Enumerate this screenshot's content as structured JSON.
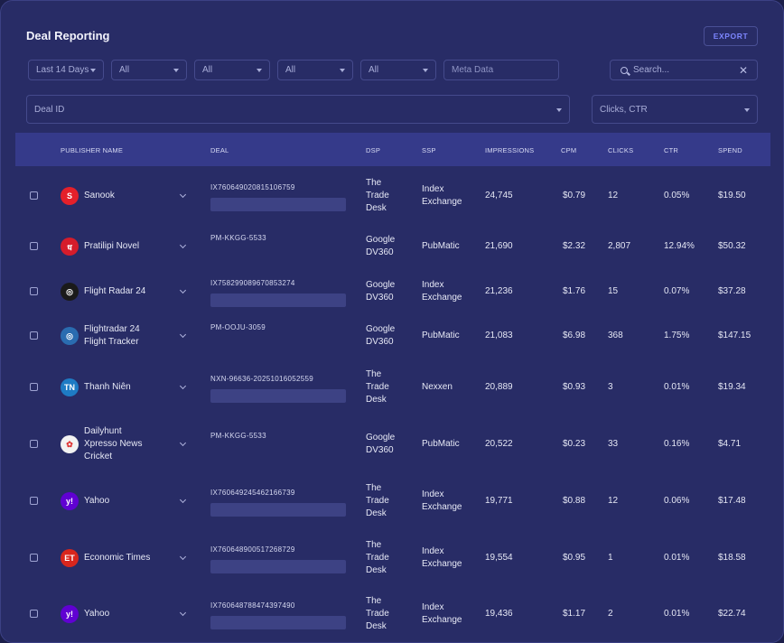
{
  "header": {
    "title": "Deal Reporting",
    "export_label": "EXPORT"
  },
  "filters": {
    "date_range": "Last 14 Days",
    "all_1": "All",
    "all_2": "All",
    "all_3": "All",
    "all_4": "All",
    "meta_placeholder": "Meta Data",
    "search_placeholder": "Search...",
    "deal_id_placeholder": "Deal ID",
    "metrics_value": "Clicks, CTR"
  },
  "table": {
    "columns": [
      "PUBLISHER NAME",
      "DEAL",
      "DSP",
      "SSP",
      "IMPRESSIONS",
      "CPM",
      "CLICKS",
      "CTR",
      "SPEND"
    ],
    "rows": [
      {
        "publisher": [
          "Sanook"
        ],
        "logo": "S",
        "logo_color": "#e4202a",
        "deal": "IX760649020815106759",
        "dsp": [
          "The",
          "Trade",
          "Desk"
        ],
        "ssp": [
          "Index",
          "Exchange"
        ],
        "impressions": "24,745",
        "cpm": "$0.79",
        "clicks": "12",
        "ctr": "0.05%",
        "spend": "$19.50"
      },
      {
        "publisher": [
          "Pratilipi Novel"
        ],
        "logo": "ध",
        "logo_color": "#d51c2b",
        "deal": "PM-KKGG-5533",
        "dsp": [
          "Google",
          "DV360"
        ],
        "ssp": [
          "PubMatic"
        ],
        "impressions": "21,690",
        "cpm": "$2.32",
        "clicks": "2,807",
        "ctr": "12.94%",
        "spend": "$50.32"
      },
      {
        "publisher": [
          "Flight Radar 24"
        ],
        "logo": "◎",
        "logo_color": "#1a1a1a",
        "deal": "IX758299089670853274",
        "dsp": [
          "Google",
          "DV360"
        ],
        "ssp": [
          "Index",
          "Exchange"
        ],
        "impressions": "21,236",
        "cpm": "$1.76",
        "clicks": "15",
        "ctr": "0.07%",
        "spend": "$37.28"
      },
      {
        "publisher": [
          "Flightradar 24",
          "Flight Tracker"
        ],
        "logo": "◎",
        "logo_color": "#2a6cb0",
        "deal": "PM-OOJU-3059",
        "dsp": [
          "Google",
          "DV360"
        ],
        "ssp": [
          "PubMatic"
        ],
        "impressions": "21,083",
        "cpm": "$6.98",
        "clicks": "368",
        "ctr": "1.75%",
        "spend": "$147.15"
      },
      {
        "publisher": [
          "Thanh Niên"
        ],
        "logo": "TN",
        "logo_color": "#1e7bc4",
        "deal": "NXN-96636-20251016052559",
        "dsp": [
          "The",
          "Trade",
          "Desk"
        ],
        "ssp": [
          "Nexxen"
        ],
        "impressions": "20,889",
        "cpm": "$0.93",
        "clicks": "3",
        "ctr": "0.01%",
        "spend": "$19.34"
      },
      {
        "publisher": [
          "Dailyhunt",
          "Xpresso News",
          "Cricket"
        ],
        "logo": "✿",
        "logo_color": "#f2f2f2",
        "deal": "PM-KKGG-5533",
        "dsp": [
          "Google",
          "DV360"
        ],
        "ssp": [
          "PubMatic"
        ],
        "impressions": "20,522",
        "cpm": "$0.23",
        "clicks": "33",
        "ctr": "0.16%",
        "spend": "$4.71"
      },
      {
        "publisher": [
          "Yahoo"
        ],
        "logo": "y!",
        "logo_color": "#6001d2",
        "deal": "IX760649245462166739",
        "dsp": [
          "The",
          "Trade",
          "Desk"
        ],
        "ssp": [
          "Index",
          "Exchange"
        ],
        "impressions": "19,771",
        "cpm": "$0.88",
        "clicks": "12",
        "ctr": "0.06%",
        "spend": "$17.48"
      },
      {
        "publisher": [
          "Economic Times"
        ],
        "logo": "ET",
        "logo_color": "#d8261d",
        "deal": "IX760648900517268729",
        "dsp": [
          "The",
          "Trade",
          "Desk"
        ],
        "ssp": [
          "Index",
          "Exchange"
        ],
        "impressions": "19,554",
        "cpm": "$0.95",
        "clicks": "1",
        "ctr": "0.01%",
        "spend": "$18.58"
      },
      {
        "publisher": [
          "Yahoo"
        ],
        "logo": "y!",
        "logo_color": "#6001d2",
        "deal": "IX760648788474397490",
        "dsp": [
          "The",
          "Trade",
          "Desk"
        ],
        "ssp": [
          "Index",
          "Exchange"
        ],
        "impressions": "19,436",
        "cpm": "$1.17",
        "clicks": "2",
        "ctr": "0.01%",
        "spend": "$22.74"
      }
    ]
  }
}
